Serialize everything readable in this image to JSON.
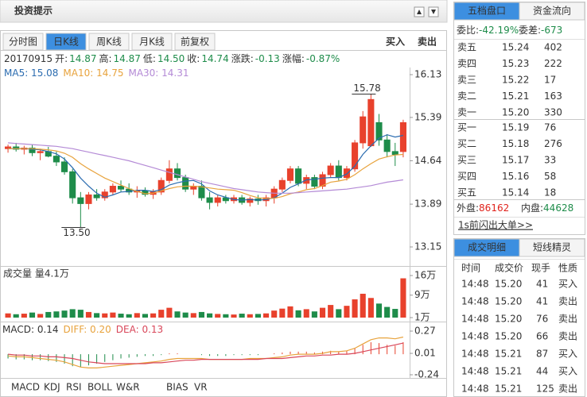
{
  "header": {
    "title": "投资提示"
  },
  "tabs": [
    "分时图",
    "日K线",
    "周K线",
    "月K线",
    "前复权"
  ],
  "actions": [
    "买入",
    "卖出"
  ],
  "info": {
    "date": "20170915",
    "items": [
      {
        "label": "开:",
        "value": "14.87"
      },
      {
        "label": "高:",
        "value": "14.87"
      },
      {
        "label": "低:",
        "value": "14.50"
      },
      {
        "label": "收:",
        "value": "14.74"
      },
      {
        "label": "涨跌:",
        "value": "-0.13"
      },
      {
        "label": "涨幅:",
        "value": "-0.87%"
      }
    ]
  },
  "chart_data": [
    {
      "type": "candlestick",
      "ylim": [
        13.15,
        16.13
      ],
      "yticks": [
        16.13,
        15.39,
        14.64,
        13.89,
        13.15
      ],
      "up_color": "#e8412c",
      "down_color": "#1e8c4a",
      "open": [
        14.85,
        14.88,
        14.84,
        14.86,
        14.78,
        14.8,
        14.72,
        14.62,
        14.45,
        14.0,
        13.9,
        14.05,
        14.0,
        14.1,
        14.2,
        14.15,
        14.1,
        14.12,
        14.06,
        14.1,
        14.3,
        14.5,
        14.35,
        14.15,
        14.2,
        14.0,
        13.92,
        14.0,
        13.95,
        14.0,
        13.92,
        13.98,
        13.95,
        14.0,
        14.15,
        14.3,
        14.5,
        14.25,
        14.35,
        14.2,
        14.4,
        14.55,
        14.35,
        14.5,
        14.95,
        14.9,
        15.3,
        15.0,
        14.8,
        14.8
      ],
      "high": [
        14.92,
        14.95,
        14.9,
        14.92,
        14.85,
        14.88,
        14.8,
        14.7,
        14.5,
        14.1,
        14.1,
        14.15,
        14.15,
        14.25,
        14.3,
        14.25,
        14.2,
        14.18,
        14.15,
        14.35,
        14.65,
        14.6,
        14.4,
        14.25,
        14.3,
        14.1,
        14.05,
        14.05,
        14.05,
        14.05,
        14.02,
        14.05,
        14.05,
        14.2,
        14.35,
        14.55,
        14.55,
        14.4,
        14.4,
        14.45,
        14.6,
        14.65,
        14.55,
        15.0,
        15.5,
        15.78,
        15.45,
        15.1,
        14.95,
        15.35
      ],
      "low": [
        14.78,
        14.8,
        14.75,
        14.72,
        14.65,
        14.7,
        14.55,
        14.4,
        13.9,
        13.5,
        13.8,
        13.95,
        13.95,
        14.05,
        14.1,
        14.05,
        14.0,
        14.02,
        13.98,
        14.05,
        14.25,
        14.3,
        14.1,
        14.05,
        13.95,
        13.8,
        13.85,
        13.9,
        13.9,
        13.88,
        13.85,
        13.88,
        13.85,
        13.9,
        14.1,
        14.25,
        14.2,
        14.15,
        14.15,
        14.15,
        14.35,
        14.3,
        14.3,
        14.45,
        14.85,
        14.88,
        14.9,
        14.7,
        14.55,
        14.7
      ],
      "close": [
        14.88,
        14.84,
        14.86,
        14.78,
        14.8,
        14.72,
        14.62,
        14.45,
        14.0,
        13.9,
        14.05,
        14.0,
        14.1,
        14.2,
        14.15,
        14.1,
        14.12,
        14.06,
        14.1,
        14.3,
        14.5,
        14.35,
        14.15,
        14.2,
        14.0,
        13.92,
        14.0,
        13.95,
        14.0,
        13.92,
        13.98,
        13.95,
        14.0,
        14.15,
        14.3,
        14.5,
        14.25,
        14.35,
        14.2,
        14.4,
        14.55,
        14.35,
        14.5,
        14.95,
        15.4,
        15.7,
        15.0,
        14.8,
        14.75,
        15.3
      ],
      "series": [
        {
          "name": "MA5",
          "legend": "MA5: 15.08",
          "color": "#2b6cb0",
          "values": [
            14.85,
            14.85,
            14.85,
            14.84,
            14.83,
            14.8,
            14.76,
            14.67,
            14.52,
            14.34,
            14.2,
            14.08,
            14.01,
            14.05,
            14.1,
            14.11,
            14.13,
            14.13,
            14.11,
            14.14,
            14.22,
            14.26,
            14.29,
            14.3,
            14.24,
            14.12,
            14.05,
            14.01,
            13.97,
            13.96,
            13.97,
            13.96,
            13.97,
            14.0,
            14.08,
            14.18,
            14.24,
            14.31,
            14.32,
            14.34,
            14.35,
            14.35,
            14.41,
            14.55,
            14.75,
            14.9,
            15.03,
            15.09,
            15.05,
            15.08
          ]
        },
        {
          "name": "MA10",
          "legend": "MA10: 14.75",
          "color": "#e8a33d",
          "values": [
            14.85,
            14.85,
            14.85,
            14.85,
            14.84,
            14.83,
            14.81,
            14.77,
            14.7,
            14.59,
            14.5,
            14.42,
            14.34,
            14.28,
            14.22,
            14.16,
            14.11,
            14.07,
            14.08,
            14.12,
            14.16,
            14.19,
            14.2,
            14.2,
            14.19,
            14.17,
            14.15,
            14.14,
            14.13,
            14.09,
            14.04,
            14.0,
            13.99,
            13.99,
            14.02,
            14.07,
            14.1,
            14.14,
            14.16,
            14.21,
            14.27,
            14.29,
            14.32,
            14.4,
            14.5,
            14.59,
            14.67,
            14.71,
            14.74,
            14.75
          ]
        },
        {
          "name": "MA30",
          "legend": "MA30: 14.31",
          "color": "#b48ad6",
          "values": [
            14.95,
            14.94,
            14.93,
            14.92,
            14.91,
            14.9,
            14.89,
            14.87,
            14.85,
            14.82,
            14.79,
            14.76,
            14.73,
            14.7,
            14.67,
            14.64,
            14.6,
            14.56,
            14.52,
            14.48,
            14.44,
            14.4,
            14.36,
            14.32,
            14.28,
            14.25,
            14.22,
            14.19,
            14.16,
            14.14,
            14.12,
            14.1,
            14.09,
            14.08,
            14.08,
            14.08,
            14.09,
            14.1,
            14.11,
            14.12,
            14.13,
            14.14,
            14.15,
            14.17,
            14.19,
            14.21,
            14.24,
            14.27,
            14.29,
            14.31
          ]
        }
      ],
      "annotations": [
        15.78,
        {
          "value": 13.5,
          "label": "13.50"
        }
      ]
    },
    {
      "type": "bar",
      "title": "成交量 量4.1万",
      "ylim": [
        1,
        16
      ],
      "yticks": [
        {
          "value": 16,
          "label": "16万"
        },
        {
          "value": 9,
          "label": "9万"
        },
        {
          "value": 1,
          "label": "1万"
        }
      ],
      "values": [
        2.5,
        2.2,
        2.4,
        2.8,
        2.3,
        3.0,
        3.2,
        3.5,
        4.0,
        3.8,
        3.0,
        2.6,
        2.5,
        2.8,
        2.4,
        2.2,
        2.6,
        2.3,
        2.5,
        3.8,
        4.5,
        3.2,
        2.8,
        2.6,
        3.0,
        2.5,
        2.3,
        2.2,
        2.1,
        2.4,
        2.2,
        2.3,
        2.5,
        3.5,
        4.2,
        5.0,
        3.6,
        4.0,
        3.2,
        4.5,
        5.5,
        4.0,
        5.2,
        7.5,
        9.5,
        8.0,
        6.0,
        4.8,
        4.1,
        15.0
      ]
    },
    {
      "type": "macd",
      "title": "MACD: 0.14",
      "ylim": [
        -0.24,
        0.27
      ],
      "yticks": [
        0.27,
        0.01,
        -0.24
      ],
      "up_color": "#e8412c",
      "down_color": "#1e8c4a",
      "values": [
        -0.05,
        -0.06,
        -0.06,
        -0.07,
        -0.07,
        -0.08,
        -0.09,
        -0.11,
        -0.14,
        -0.15,
        -0.13,
        -0.11,
        -0.09,
        -0.07,
        -0.05,
        -0.04,
        -0.03,
        -0.02,
        -0.02,
        -0.01,
        0.01,
        0.01,
        0.0,
        0.0,
        -0.01,
        -0.02,
        -0.02,
        -0.02,
        -0.01,
        -0.01,
        -0.01,
        -0.01,
        0.0,
        0.01,
        0.02,
        0.03,
        0.03,
        0.03,
        0.02,
        0.03,
        0.04,
        0.03,
        0.04,
        0.07,
        0.11,
        0.14,
        0.13,
        0.11,
        0.1,
        0.14
      ],
      "series": [
        {
          "name": "DIFF",
          "legend": "DIFF: 0.20",
          "color": "#e8a33d",
          "values": [
            -0.02,
            -0.03,
            -0.03,
            -0.04,
            -0.05,
            -0.06,
            -0.07,
            -0.09,
            -0.12,
            -0.15,
            -0.16,
            -0.16,
            -0.15,
            -0.14,
            -0.13,
            -0.12,
            -0.11,
            -0.1,
            -0.09,
            -0.08,
            -0.06,
            -0.05,
            -0.05,
            -0.05,
            -0.05,
            -0.06,
            -0.06,
            -0.06,
            -0.06,
            -0.06,
            -0.05,
            -0.05,
            -0.05,
            -0.04,
            -0.03,
            -0.01,
            0.0,
            0.0,
            0.0,
            0.01,
            0.03,
            0.03,
            0.04,
            0.07,
            0.12,
            0.17,
            0.19,
            0.19,
            0.18,
            0.2
          ]
        },
        {
          "name": "DEA",
          "legend": "DEA: 0.13",
          "color": "#d9475a",
          "values": [
            0.0,
            -0.01,
            -0.01,
            -0.02,
            -0.02,
            -0.03,
            -0.03,
            -0.04,
            -0.05,
            -0.07,
            -0.09,
            -0.1,
            -0.11,
            -0.11,
            -0.11,
            -0.11,
            -0.11,
            -0.11,
            -0.1,
            -0.1,
            -0.09,
            -0.08,
            -0.07,
            -0.07,
            -0.06,
            -0.06,
            -0.06,
            -0.06,
            -0.06,
            -0.06,
            -0.06,
            -0.06,
            -0.05,
            -0.05,
            -0.05,
            -0.04,
            -0.03,
            -0.02,
            -0.02,
            -0.01,
            -0.01,
            0.0,
            0.0,
            0.01,
            0.03,
            0.05,
            0.07,
            0.09,
            0.11,
            0.13
          ]
        }
      ]
    }
  ],
  "indicators": [
    "MACD",
    "KDJ",
    "RSI",
    "BOLL",
    "W&R",
    "BIAS",
    "VR"
  ],
  "order_book": {
    "tabs": [
      "五档盘口",
      "资金流向"
    ],
    "ratio": {
      "label": "委比:",
      "value": "-42.19%"
    },
    "diff": {
      "label": "委差:",
      "value": "-673"
    },
    "asks": [
      [
        "卖五",
        "15.24",
        "402"
      ],
      [
        "卖四",
        "15.23",
        "222"
      ],
      [
        "卖三",
        "15.22",
        "17"
      ],
      [
        "卖二",
        "15.21",
        "163"
      ],
      [
        "卖一",
        "15.20",
        "330"
      ]
    ],
    "bids": [
      [
        "买一",
        "15.19",
        "76"
      ],
      [
        "买二",
        "15.18",
        "276"
      ],
      [
        "买三",
        "15.17",
        "33"
      ],
      [
        "买四",
        "15.16",
        "58"
      ],
      [
        "买五",
        "15.14",
        "18"
      ]
    ],
    "outer": {
      "label": "外盘:",
      "value": "86162"
    },
    "inner": {
      "label": "内盘:",
      "value": "44628"
    },
    "link": "1s前闪出大单>>"
  },
  "trades": {
    "tabs": [
      "成交明细",
      "短线精灵"
    ],
    "columns": [
      "时间",
      "成交价",
      "现手",
      "性质"
    ],
    "rows": [
      [
        "14:48",
        "15.20",
        "41",
        "买入"
      ],
      [
        "14:48",
        "15.20",
        "41",
        "卖出"
      ],
      [
        "14:48",
        "15.20",
        "76",
        "卖出"
      ],
      [
        "14:48",
        "15.20",
        "66",
        "卖出"
      ],
      [
        "14:48",
        "15.21",
        "87",
        "买入"
      ],
      [
        "14:48",
        "15.21",
        "44",
        "买入"
      ],
      [
        "14:48",
        "15.21",
        "125",
        "卖出"
      ]
    ]
  }
}
